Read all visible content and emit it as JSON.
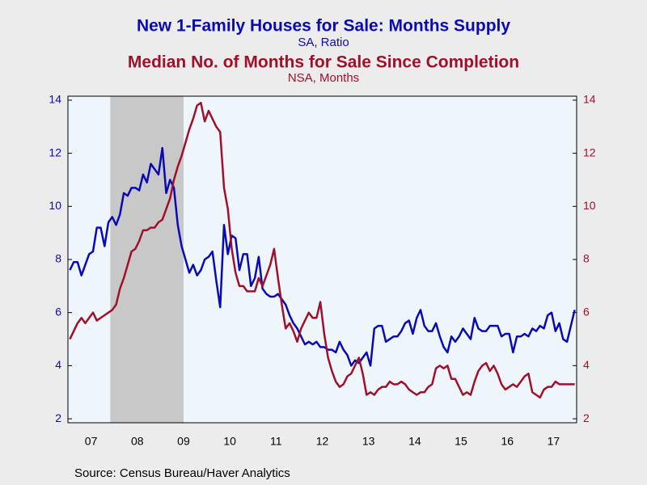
{
  "chart_data": {
    "type": "line",
    "title": "New 1-Family Houses for Sale: Months Supply",
    "subtitle": "SA, Ratio",
    "title2": "Median No. of Months for Sale Since Completion",
    "subtitle2": "NSA, Months",
    "source": "Source:  Census Bureau/Haver Analytics",
    "xlim": [
      2007,
      2018
    ],
    "xticks": [
      {
        "value": 2007.5,
        "label": "07"
      },
      {
        "value": 2008.5,
        "label": "08"
      },
      {
        "value": 2009.5,
        "label": "09"
      },
      {
        "value": 2010.5,
        "label": "10"
      },
      {
        "value": 2011.5,
        "label": "11"
      },
      {
        "value": 2012.5,
        "label": "12"
      },
      {
        "value": 2013.5,
        "label": "13"
      },
      {
        "value": 2014.5,
        "label": "14"
      },
      {
        "value": 2015.5,
        "label": "15"
      },
      {
        "value": 2016.5,
        "label": "16"
      },
      {
        "value": 2017.5,
        "label": "17"
      }
    ],
    "ylim": [
      1.85,
      14.15
    ],
    "yticks": [
      2,
      4,
      6,
      8,
      10,
      12,
      14
    ],
    "y2lim": [
      1.85,
      14.15
    ],
    "y2ticks": [
      2,
      4,
      6,
      8,
      10,
      12,
      14
    ],
    "recessions": [
      {
        "start": 2007.917,
        "end": 2009.5,
        "color": "#c8c8c8"
      }
    ],
    "x": [
      2007.042,
      2007.125,
      2007.208,
      2007.292,
      2007.375,
      2007.458,
      2007.542,
      2007.625,
      2007.708,
      2007.792,
      2007.875,
      2007.958,
      2008.042,
      2008.125,
      2008.208,
      2008.292,
      2008.375,
      2008.458,
      2008.542,
      2008.625,
      2008.708,
      2008.792,
      2008.875,
      2008.958,
      2009.042,
      2009.125,
      2009.208,
      2009.292,
      2009.375,
      2009.458,
      2009.542,
      2009.625,
      2009.708,
      2009.792,
      2009.875,
      2009.958,
      2010.042,
      2010.125,
      2010.208,
      2010.292,
      2010.375,
      2010.458,
      2010.542,
      2010.625,
      2010.708,
      2010.792,
      2010.875,
      2010.958,
      2011.042,
      2011.125,
      2011.208,
      2011.292,
      2011.375,
      2011.458,
      2011.542,
      2011.625,
      2011.708,
      2011.792,
      2011.875,
      2011.958,
      2012.042,
      2012.125,
      2012.208,
      2012.292,
      2012.375,
      2012.458,
      2012.542,
      2012.625,
      2012.708,
      2012.792,
      2012.875,
      2012.958,
      2013.042,
      2013.125,
      2013.208,
      2013.292,
      2013.375,
      2013.458,
      2013.542,
      2013.625,
      2013.708,
      2013.792,
      2013.875,
      2013.958,
      2014.042,
      2014.125,
      2014.208,
      2014.292,
      2014.375,
      2014.458,
      2014.542,
      2014.625,
      2014.708,
      2014.792,
      2014.875,
      2014.958,
      2015.042,
      2015.125,
      2015.208,
      2015.292,
      2015.375,
      2015.458,
      2015.542,
      2015.625,
      2015.708,
      2015.792,
      2015.875,
      2015.958,
      2016.042,
      2016.125,
      2016.208,
      2016.292,
      2016.375,
      2016.458,
      2016.542,
      2016.625,
      2016.708,
      2016.792,
      2016.875,
      2016.958,
      2017.042,
      2017.125,
      2017.208,
      2017.292,
      2017.375,
      2017.458,
      2017.542,
      2017.625,
      2017.708,
      2017.792,
      2017.875,
      2017.958
    ],
    "series": [
      {
        "name": "New 1-Family Houses for Sale: Months Supply",
        "color": "#0a0ab4",
        "axis": "y",
        "values": [
          7.6,
          7.9,
          7.9,
          7.4,
          7.8,
          8.2,
          8.3,
          9.2,
          9.2,
          8.5,
          9.4,
          9.6,
          9.3,
          9.7,
          10.5,
          10.4,
          10.7,
          10.7,
          10.6,
          11.2,
          10.9,
          11.6,
          11.4,
          11.2,
          12.2,
          10.5,
          11.0,
          10.7,
          9.3,
          8.5,
          8.0,
          7.5,
          7.8,
          7.4,
          7.6,
          8.0,
          8.1,
          8.3,
          7.2,
          6.2,
          9.3,
          8.2,
          8.9,
          8.8,
          7.6,
          8.2,
          8.2,
          7.0,
          7.3,
          8.1,
          6.9,
          6.7,
          6.6,
          6.6,
          6.7,
          6.5,
          6.3,
          5.9,
          5.6,
          5.4,
          5.1,
          4.8,
          4.9,
          4.8,
          4.9,
          4.7,
          4.7,
          4.6,
          4.6,
          4.5,
          4.9,
          4.6,
          4.4,
          4.0,
          4.2,
          4.1,
          4.3,
          4.5,
          4.0,
          5.4,
          5.5,
          5.5,
          4.9,
          5.0,
          5.1,
          5.1,
          5.3,
          5.6,
          5.7,
          5.2,
          5.8,
          6.1,
          5.5,
          5.3,
          5.3,
          5.6,
          5.1,
          4.7,
          4.5,
          5.1,
          4.9,
          5.1,
          5.4,
          5.2,
          5.0,
          5.8,
          5.4,
          5.3,
          5.3,
          5.5,
          5.5,
          5.5,
          5.1,
          5.2,
          5.2,
          4.5,
          5.1,
          5.1,
          5.2,
          5.1,
          5.4,
          5.3,
          5.5,
          5.4,
          5.9,
          6.0,
          5.3,
          5.6,
          5.0,
          4.9,
          5.5,
          6.1
        ]
      },
      {
        "name": "Median No. of Months for Sale Since Completion",
        "color": "#a0102a",
        "axis": "y2",
        "values": [
          5.0,
          5.3,
          5.6,
          5.8,
          5.6,
          5.8,
          6.0,
          5.7,
          5.8,
          5.9,
          6.0,
          6.1,
          6.3,
          6.9,
          7.3,
          7.8,
          8.3,
          8.4,
          8.7,
          9.1,
          9.1,
          9.2,
          9.2,
          9.4,
          9.5,
          9.9,
          10.3,
          11.0,
          11.5,
          11.9,
          12.4,
          12.9,
          13.3,
          13.8,
          13.9,
          13.2,
          13.6,
          13.3,
          13.0,
          12.8,
          10.7,
          9.9,
          8.4,
          7.5,
          7.0,
          7.0,
          6.8,
          6.8,
          6.8,
          7.3,
          7.0,
          7.4,
          7.8,
          8.4,
          7.3,
          6.3,
          5.4,
          5.6,
          5.3,
          4.9,
          5.4,
          5.7,
          6.0,
          5.8,
          5.8,
          6.4,
          5.2,
          4.3,
          3.8,
          3.4,
          3.2,
          3.3,
          3.6,
          3.7,
          4.0,
          4.3,
          3.7,
          2.9,
          3.0,
          2.9,
          3.1,
          3.2,
          3.2,
          3.4,
          3.3,
          3.3,
          3.4,
          3.3,
          3.1,
          3.0,
          2.9,
          3.0,
          3.0,
          3.2,
          3.3,
          3.9,
          4.0,
          3.9,
          4.0,
          3.5,
          3.5,
          3.2,
          2.9,
          3.0,
          2.9,
          3.4,
          3.8,
          4.0,
          4.1,
          3.8,
          4.0,
          3.7,
          3.3,
          3.1,
          3.2,
          3.3,
          3.2,
          3.4,
          3.6,
          3.7,
          3.0,
          2.9,
          2.8,
          3.1,
          3.2,
          3.2,
          3.4,
          3.3,
          3.3,
          3.3,
          3.3,
          3.3
        ]
      }
    ]
  }
}
